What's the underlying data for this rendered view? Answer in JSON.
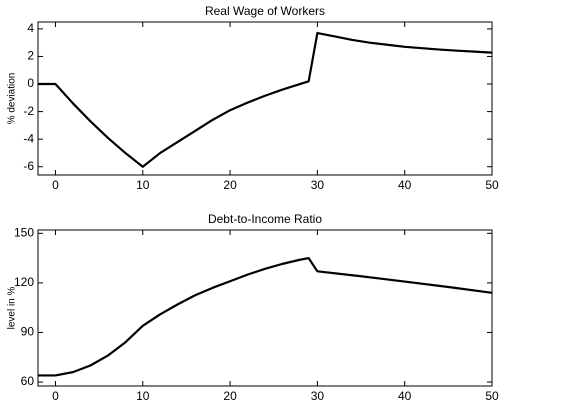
{
  "chart_data": [
    {
      "type": "line",
      "title": "Real Wage of Workers",
      "y_label": "% deviation",
      "x": [
        -2,
        0,
        2,
        4,
        6,
        8,
        10,
        12,
        14,
        16,
        18,
        20,
        22,
        24,
        26,
        28,
        29,
        30,
        32,
        34,
        36,
        38,
        40,
        42,
        44,
        46,
        48,
        50
      ],
      "series": [
        {
          "color": "#000000",
          "values": [
            0,
            0,
            -1.4,
            -2.7,
            -3.9,
            -5.0,
            -6.0,
            -5.0,
            -4.2,
            -3.4,
            -2.6,
            -1.9,
            -1.35,
            -0.85,
            -0.4,
            0.0,
            0.2,
            3.7,
            3.45,
            3.2,
            3.0,
            2.85,
            2.7,
            2.6,
            2.5,
            2.42,
            2.35,
            2.28
          ]
        }
      ],
      "xlim": [
        -2,
        50
      ],
      "xticks": [
        0,
        10,
        20,
        30,
        40,
        50
      ],
      "ylim": [
        -6.6,
        4.5
      ],
      "yticks": [
        -6,
        -4,
        -2,
        0,
        2,
        4
      ]
    },
    {
      "type": "line",
      "title": "Debt-to-Income Ratio",
      "y_label": "level in %",
      "x": [
        -2,
        0,
        2,
        4,
        6,
        8,
        10,
        12,
        14,
        16,
        18,
        20,
        22,
        24,
        26,
        28,
        29,
        30,
        35,
        40,
        45,
        50
      ],
      "series": [
        {
          "color": "#000000",
          "values": [
            64,
            64,
            66,
            70,
            76,
            84,
            94,
            101,
            107,
            112.5,
            117,
            121,
            125,
            128.5,
            131.5,
            134,
            135,
            127,
            124,
            120.8,
            117.5,
            114
          ]
        }
      ],
      "xlim": [
        -2,
        50
      ],
      "xticks": [
        0,
        10,
        20,
        30,
        40,
        50
      ],
      "ylim": [
        57.6,
        152
      ],
      "yticks": [
        60,
        90,
        120,
        150
      ]
    }
  ]
}
